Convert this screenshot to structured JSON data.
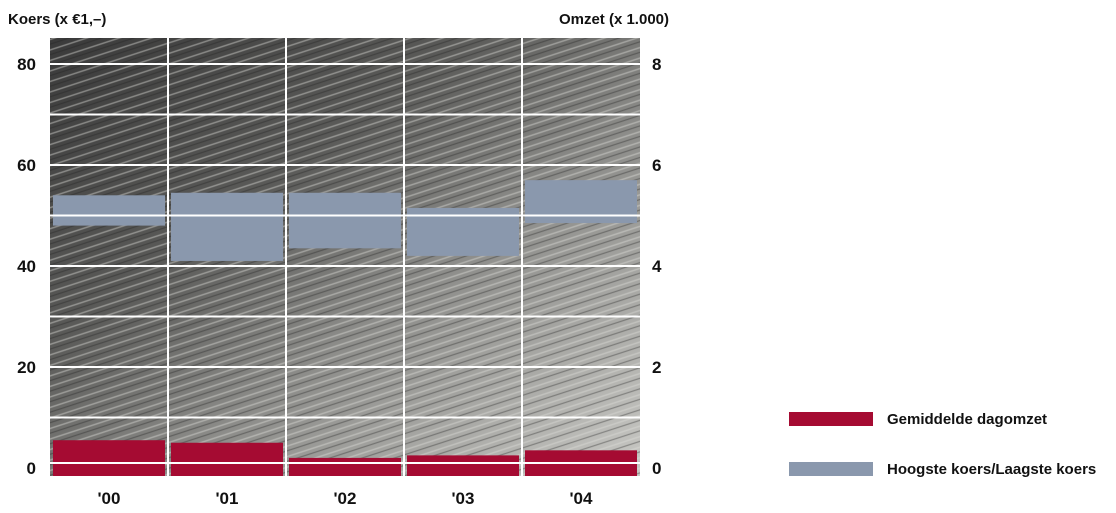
{
  "chart_data": {
    "type": "bar",
    "categories": [
      "'00",
      "'01",
      "'02",
      "'03",
      "'04"
    ],
    "left_axis": {
      "label": "Koers (x €1,–)",
      "ticks": [
        "0",
        "20",
        "40",
        "60",
        "80"
      ],
      "ylim": [
        0,
        85
      ]
    },
    "right_axis": {
      "label": "Omzet (x 1.000)",
      "ticks": [
        "0",
        "2",
        "4",
        "6",
        "8"
      ],
      "ylim": [
        0,
        8.5
      ]
    },
    "series": [
      {
        "name": "Gemiddelde dagomzet",
        "axis": "right",
        "color": "#a50b32",
        "values": [
          0.55,
          0.5,
          0.2,
          0.25,
          0.35
        ]
      },
      {
        "name": "Hoogste koers/Laagste koers",
        "axis": "left",
        "color": "#8a98ad",
        "ranges": [
          [
            48,
            54
          ],
          [
            41,
            54.5
          ],
          [
            43.5,
            54.5
          ],
          [
            42,
            51.5
          ],
          [
            48.5,
            57
          ]
        ]
      }
    ],
    "grid": true,
    "legend": "bottom-right"
  },
  "colors": {
    "photo_dark": "#2e2e2e",
    "photo_light": "#b9b9b6",
    "grid": "#ffffff"
  }
}
